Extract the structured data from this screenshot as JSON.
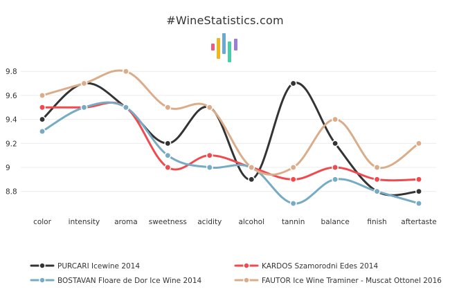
{
  "chart_data": {
    "type": "line",
    "title": "#WineStatistics.com",
    "categories": [
      "color",
      "intensity",
      "aroma",
      "sweetness",
      "acidity",
      "alcohol",
      "tannin",
      "balance",
      "finish",
      "aftertaste"
    ],
    "y_ticks": [
      "8.8",
      "9",
      "9.2",
      "9.4",
      "9.6",
      "9.8"
    ],
    "ylim": [
      8.6,
      9.9
    ],
    "grid": true,
    "legend_position": "bottom",
    "series": [
      {
        "name": "PURCARI Icewine 2014",
        "color": "#333333",
        "values": [
          9.4,
          9.7,
          9.5,
          9.2,
          9.5,
          8.9,
          9.7,
          9.2,
          8.8,
          8.8
        ]
      },
      {
        "name": "KARDOS Szamorodni Edes 2014",
        "color": "#f04a4e",
        "values": [
          9.5,
          9.5,
          9.5,
          9.0,
          9.1,
          9.0,
          8.9,
          9.0,
          8.9,
          8.9
        ]
      },
      {
        "name": "BOSTAVAN Floare de Dor Ice Wine 2014",
        "color": "#77aac3",
        "values": [
          9.3,
          9.5,
          9.5,
          9.1,
          9.0,
          9.0,
          8.7,
          8.9,
          8.8,
          8.7
        ]
      },
      {
        "name": "FAUTOR Ice Wine Traminer - Muscat Ottonel 2016",
        "color": "#dbac89",
        "values": [
          9.6,
          9.7,
          9.8,
          9.5,
          9.5,
          9.0,
          9.0,
          9.4,
          9.0,
          9.2
        ]
      }
    ],
    "logo_colors": [
      "#ee5a82",
      "#f2b51a",
      "#6aa9d4",
      "#48cfa9",
      "#9b7fd1"
    ]
  }
}
